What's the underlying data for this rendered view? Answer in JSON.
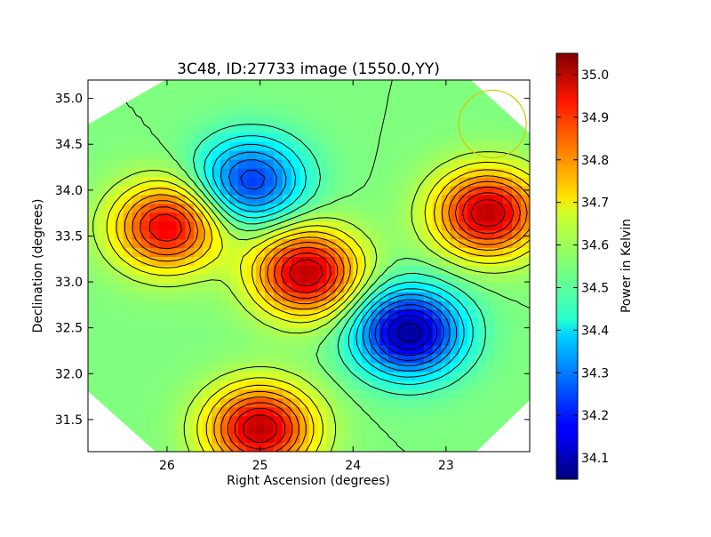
{
  "chart_data": {
    "type": "heatmap",
    "title": "3C48, ID:27733 image (1550.0,YY)",
    "xlabel": "Right Ascension (degrees)",
    "ylabel": "Declination (degrees)",
    "xlim": [
      26.85,
      22.1
    ],
    "ylim": [
      31.15,
      35.2
    ],
    "x_ticks": [
      26,
      25,
      24,
      23
    ],
    "y_ticks": [
      31.5,
      32.0,
      32.5,
      33.0,
      33.5,
      34.0,
      34.5,
      35.0
    ],
    "x_tick_labels": [
      "26",
      "25",
      "24",
      "23"
    ],
    "y_tick_labels": [
      "31.5",
      "32.0",
      "32.5",
      "33.0",
      "33.5",
      "34.0",
      "34.5",
      "35.0"
    ],
    "colorbar": {
      "label": "Power in Kelvin",
      "colormap": "jet",
      "range": [
        34.05,
        35.05
      ],
      "ticks": [
        34.1,
        34.2,
        34.3,
        34.4,
        34.5,
        34.6,
        34.7,
        34.8,
        34.9,
        35.0
      ],
      "tick_labels": [
        "34.1",
        "34.2",
        "34.3",
        "34.4",
        "34.5",
        "34.6",
        "34.7",
        "34.8",
        "34.9",
        "35.0"
      ]
    },
    "features": [
      {
        "kind": "max",
        "ra": 25.0,
        "dec": 31.4,
        "value": 35.0
      },
      {
        "kind": "max",
        "ra": 24.5,
        "dec": 33.1,
        "value": 35.0
      },
      {
        "kind": "max",
        "ra": 22.55,
        "dec": 33.75,
        "value": 35.0
      },
      {
        "kind": "max",
        "ra": 26.0,
        "dec": 33.6,
        "value": 34.95
      },
      {
        "kind": "min",
        "ra": 23.4,
        "dec": 32.45,
        "value": 34.07
      },
      {
        "kind": "min",
        "ra": 25.1,
        "dec": 34.1,
        "value": 34.22
      }
    ],
    "marker": {
      "kind": "beam-circle",
      "ra": 22.5,
      "dec": 34.72,
      "color": "#cccc00"
    },
    "grid": false
  }
}
